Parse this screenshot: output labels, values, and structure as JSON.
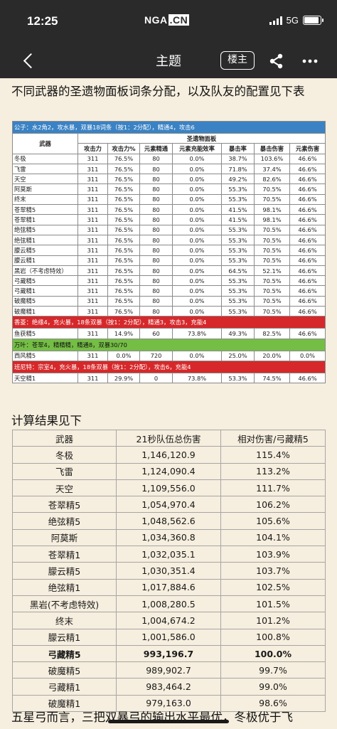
{
  "status_bar": {
    "time": "12:25",
    "logo_main": "NGA",
    "logo_suffix": ".CN",
    "network": "5G",
    "battery_level": 0.9
  },
  "nav": {
    "title": "主题",
    "op_label": "楼主"
  },
  "post": {
    "intro": "不同武器的圣遗物面板词条分配，以及队友的配置见下表",
    "calc_title": "计算结果见下",
    "outro": "五星弓而言，三把双暴弓的输出水平最优，冬极优于飞"
  },
  "stat_table": {
    "header_weapon": "武器",
    "header_group": "圣遗物面板",
    "columns": [
      "攻击力",
      "攻击力%",
      "元素精通",
      "元素充能效率",
      "暴击率",
      "暴击伤害",
      "元素伤害"
    ],
    "caption_main": "公子：水2角2，攻水暴，双暴18词条（按1：2分配），精通4，攻击6",
    "rows": [
      [
        "冬极",
        "311",
        "76.5%",
        "80",
        "0.0%",
        "38.7%",
        "103.6%",
        "46.6%"
      ],
      [
        "飞雷",
        "311",
        "76.5%",
        "80",
        "0.0%",
        "71.8%",
        "37.4%",
        "46.6%"
      ],
      [
        "天空",
        "311",
        "76.5%",
        "80",
        "0.0%",
        "49.2%",
        "82.6%",
        "46.6%"
      ],
      [
        "阿莫斯",
        "311",
        "76.5%",
        "80",
        "0.0%",
        "55.3%",
        "70.5%",
        "46.6%"
      ],
      [
        "终末",
        "311",
        "76.5%",
        "80",
        "0.0%",
        "55.3%",
        "70.5%",
        "46.6%"
      ],
      [
        "苍翠精5",
        "311",
        "76.5%",
        "80",
        "0.0%",
        "41.5%",
        "98.1%",
        "46.6%"
      ],
      [
        "苍翠精1",
        "311",
        "76.5%",
        "80",
        "0.0%",
        "41.5%",
        "98.1%",
        "46.6%"
      ],
      [
        "绝弦精5",
        "311",
        "76.5%",
        "80",
        "0.0%",
        "55.3%",
        "70.5%",
        "46.6%"
      ],
      [
        "绝弦精1",
        "311",
        "76.5%",
        "80",
        "0.0%",
        "55.3%",
        "70.5%",
        "46.6%"
      ],
      [
        "朦云精5",
        "311",
        "76.5%",
        "80",
        "0.0%",
        "55.3%",
        "70.5%",
        "46.6%"
      ],
      [
        "朦云精1",
        "311",
        "76.5%",
        "80",
        "0.0%",
        "55.3%",
        "70.5%",
        "46.6%"
      ],
      [
        "黑岩（不考虑特效）",
        "311",
        "76.5%",
        "80",
        "0.0%",
        "64.5%",
        "52.1%",
        "46.6%"
      ],
      [
        "弓藏精5",
        "311",
        "76.5%",
        "80",
        "0.0%",
        "55.3%",
        "70.5%",
        "46.6%"
      ],
      [
        "弓藏精1",
        "311",
        "76.5%",
        "80",
        "0.0%",
        "55.3%",
        "70.5%",
        "46.6%"
      ],
      [
        "破魔精5",
        "311",
        "76.5%",
        "80",
        "0.0%",
        "55.3%",
        "70.5%",
        "46.6%"
      ],
      [
        "破魔精1",
        "311",
        "76.5%",
        "80",
        "0.0%",
        "55.3%",
        "70.5%",
        "46.6%"
      ]
    ],
    "caption_xiangling": "香菱：绝缘4，充火暴，18条双暴（按1：2分配），精通3，攻击3，充能4",
    "row_xiangling": [
      "鱼获精5",
      "311",
      "14.9%",
      "60",
      "73.8%",
      "49.3%",
      "82.5%",
      "46.6%"
    ],
    "caption_wanye": "万叶：苍翠4，精精精，精通8，双暴30/70",
    "row_wanye": [
      "西风精5",
      "311",
      "0.0%",
      "720",
      "0.0%",
      "25.0%",
      "20.0%",
      "0.0%"
    ],
    "caption_bennett": "班尼特：宗室4，充火暴，18条双暴（按1：2分配），攻击6，充能4",
    "row_bennett": [
      "天空精1",
      "311",
      "29.9%",
      "0",
      "73.8%",
      "53.3%",
      "74.5%",
      "46.6%"
    ]
  },
  "result_table": {
    "headers": [
      "武器",
      "21秒队伍总伤害",
      "相对伤害/弓藏精5"
    ],
    "rows": [
      [
        "冬极",
        "1,146,120.9",
        "115.4%"
      ],
      [
        "飞雷",
        "1,124,090.4",
        "113.2%"
      ],
      [
        "天空",
        "1,109,556.0",
        "111.7%"
      ],
      [
        "苍翠精5",
        "1,054,970.4",
        "106.2%"
      ],
      [
        "绝弦精5",
        "1,048,562.6",
        "105.6%"
      ],
      [
        "阿莫斯",
        "1,034,360.8",
        "104.1%"
      ],
      [
        "苍翠精1",
        "1,032,035.1",
        "103.9%"
      ],
      [
        "朦云精5",
        "1,030,351.4",
        "103.7%"
      ],
      [
        "绝弦精1",
        "1,017,884.6",
        "102.5%"
      ],
      [
        "黑岩(不考虑特效)",
        "1,008,280.5",
        "101.5%"
      ],
      [
        "终末",
        "1,004,674.2",
        "101.2%"
      ],
      [
        "朦云精1",
        "1,001,586.0",
        "100.8%"
      ],
      [
        "弓藏精5",
        "993,196.7",
        "100.0%"
      ],
      [
        "破魔精5",
        "989,902.7",
        "99.7%"
      ],
      [
        "弓藏精1",
        "983,464.2",
        "99.0%"
      ],
      [
        "破魔精1",
        "979,163.0",
        "98.6%"
      ]
    ],
    "bold_row_index": 12
  }
}
